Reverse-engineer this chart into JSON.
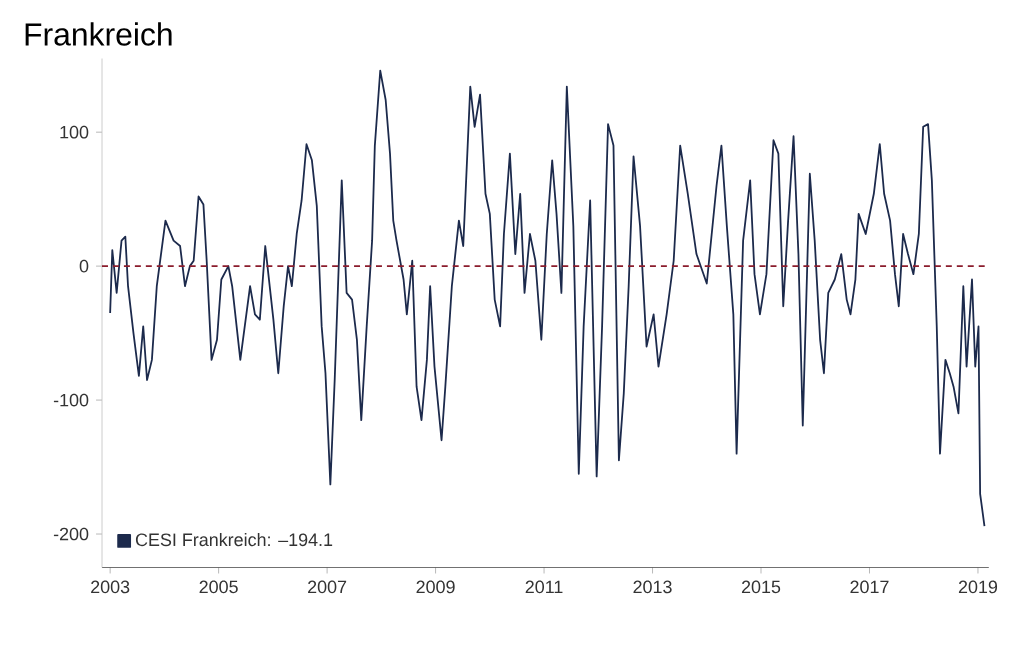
{
  "chart_data": {
    "type": "line",
    "title": "Frankreich",
    "x": [
      2003.0,
      2003.04,
      2003.12,
      2003.21,
      2003.28,
      2003.33,
      2003.43,
      2003.53,
      2003.61,
      2003.68,
      2003.77,
      2003.86,
      2004.02,
      2004.17,
      2004.29,
      2004.38,
      2004.47,
      2004.54,
      2004.63,
      2004.72,
      2004.78,
      2004.87,
      2004.97,
      2005.05,
      2005.18,
      2005.25,
      2005.4,
      2005.58,
      2005.67,
      2005.76,
      2005.86,
      2006.01,
      2006.1,
      2006.2,
      2006.28,
      2006.35,
      2006.44,
      2006.53,
      2006.62,
      2006.72,
      2006.81,
      2006.9,
      2006.97,
      2007.06,
      2007.14,
      2007.27,
      2007.36,
      2007.46,
      2007.55,
      2007.63,
      2007.73,
      2007.83,
      2007.88,
      2007.98,
      2008.08,
      2008.16,
      2008.22,
      2008.28,
      2008.41,
      2008.47,
      2008.57,
      2008.65,
      2008.74,
      2008.84,
      2008.9,
      2008.98,
      2009.11,
      2009.18,
      2009.3,
      2009.43,
      2009.51,
      2009.64,
      2009.72,
      2009.82,
      2009.92,
      2010.0,
      2010.09,
      2010.19,
      2010.26,
      2010.37,
      2010.47,
      2010.56,
      2010.64,
      2010.74,
      2010.84,
      2010.95,
      2011.05,
      2011.15,
      2011.23,
      2011.32,
      2011.42,
      2011.54,
      2011.64,
      2011.73,
      2011.85,
      2011.97,
      2012.07,
      2012.18,
      2012.28,
      2012.38,
      2012.47,
      2012.56,
      2012.65,
      2012.77,
      2012.89,
      2013.02,
      2013.11,
      2013.26,
      2013.39,
      2013.51,
      2013.65,
      2013.81,
      2014.0,
      2014.18,
      2014.27,
      2014.37,
      2014.49,
      2014.55,
      2014.67,
      2014.8,
      2014.88,
      2014.98,
      2015.1,
      2015.23,
      2015.32,
      2015.41,
      2015.5,
      2015.6,
      2015.69,
      2015.77,
      2015.9,
      2015.99,
      2016.09,
      2016.16,
      2016.24,
      2016.36,
      2016.48,
      2016.58,
      2016.65,
      2016.74,
      2016.8,
      2016.93,
      2017.08,
      2017.19,
      2017.27,
      2017.38,
      2017.47,
      2017.54,
      2017.62,
      2017.71,
      2017.81,
      2017.91,
      2017.99,
      2018.08,
      2018.15,
      2018.24,
      2018.3,
      2018.4,
      2018.48,
      2018.55,
      2018.64,
      2018.73,
      2018.79,
      2018.89,
      2018.95,
      2019.01,
      2019.04,
      2019.12
    ],
    "series": [
      {
        "name": "CESI Frankreich: –194.1",
        "color": "#1c2a4c",
        "values": [
          -35,
          12,
          -20,
          19,
          22,
          -15,
          -50,
          -82,
          -45,
          -85,
          -70,
          -15,
          34,
          19,
          15,
          -15,
          0,
          4,
          52,
          46,
          4,
          -70,
          -55,
          -10,
          0,
          -15,
          -70,
          -15,
          -36,
          -40,
          15,
          -40,
          -80,
          -30,
          0,
          -15,
          24,
          49,
          91,
          79,
          45,
          -45,
          -80,
          -163,
          -85,
          64,
          -20,
          -25,
          -55,
          -115,
          -45,
          19,
          90,
          146,
          124,
          84,
          34,
          19,
          -10,
          -36,
          4,
          -90,
          -115,
          -70,
          -15,
          -75,
          -130,
          -90,
          -15,
          34,
          15,
          134,
          104,
          128,
          54,
          39,
          -25,
          -45,
          24,
          84,
          9,
          54,
          -20,
          24,
          4,
          -55,
          24,
          79,
          39,
          -20,
          134,
          30,
          -155,
          -45,
          49,
          -157,
          -45,
          106,
          90,
          -145,
          -95,
          -15,
          82,
          30,
          -60,
          -36,
          -75,
          -36,
          4,
          90,
          54,
          9,
          -13,
          60,
          90,
          30,
          -36,
          -140,
          19,
          64,
          -6,
          -36,
          -6,
          94,
          84,
          -30,
          34,
          97,
          9,
          -119,
          69,
          19,
          -55,
          -80,
          -20,
          -10,
          9,
          -25,
          -36,
          -10,
          39,
          24,
          54,
          91,
          54,
          34,
          -6,
          -30,
          24,
          9,
          -6,
          24,
          104,
          106,
          64,
          -45,
          -140,
          -70,
          -80,
          -90,
          -110,
          -15,
          -75,
          -10,
          -75,
          -45,
          -170,
          -194.1
        ]
      }
    ],
    "xlim": [
      2002.85,
      2019.2
    ],
    "xticks": [
      2003,
      2005,
      2007,
      2009,
      2011,
      2013,
      2015,
      2017,
      2019
    ],
    "ylim": [
      -225,
      155
    ],
    "yticks": [
      -200,
      -100,
      0,
      100
    ],
    "ref_lines": [
      {
        "axis": "y",
        "value": 0,
        "color": "#8b1c2c",
        "line_style": "dashed"
      }
    ],
    "legend": "bottom left",
    "grid": false
  }
}
